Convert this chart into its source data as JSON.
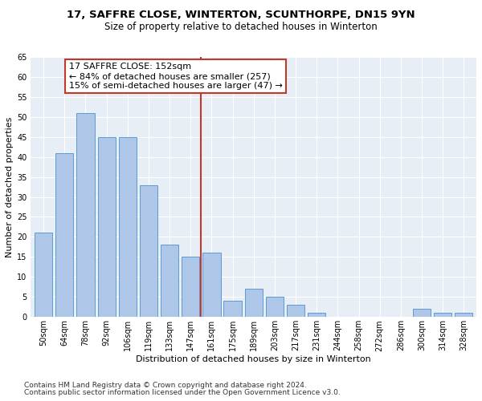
{
  "title": "17, SAFFRE CLOSE, WINTERTON, SCUNTHORPE, DN15 9YN",
  "subtitle": "Size of property relative to detached houses in Winterton",
  "xlabel": "Distribution of detached houses by size in Winterton",
  "ylabel": "Number of detached properties",
  "categories": [
    "50sqm",
    "64sqm",
    "78sqm",
    "92sqm",
    "106sqm",
    "119sqm",
    "133sqm",
    "147sqm",
    "161sqm",
    "175sqm",
    "189sqm",
    "203sqm",
    "217sqm",
    "231sqm",
    "244sqm",
    "258sqm",
    "272sqm",
    "286sqm",
    "300sqm",
    "314sqm",
    "328sqm"
  ],
  "values": [
    21,
    41,
    51,
    45,
    45,
    33,
    18,
    15,
    16,
    4,
    7,
    5,
    3,
    1,
    0,
    0,
    0,
    0,
    2,
    1,
    1
  ],
  "bar_color": "#aec6e8",
  "bar_edge_color": "#5b9bd5",
  "vline_x": 7.5,
  "vline_color": "#c0392b",
  "annotation_line1": "17 SAFFRE CLOSE: 152sqm",
  "annotation_line2": "← 84% of detached houses are smaller (257)",
  "annotation_line3": "15% of semi-detached houses are larger (47) →",
  "annotation_box_color": "#ffffff",
  "annotation_box_edge": "#c0392b",
  "ylim": [
    0,
    65
  ],
  "yticks": [
    0,
    5,
    10,
    15,
    20,
    25,
    30,
    35,
    40,
    45,
    50,
    55,
    60,
    65
  ],
  "background_color": "#e8eef5",
  "footer1": "Contains HM Land Registry data © Crown copyright and database right 2024.",
  "footer2": "Contains public sector information licensed under the Open Government Licence v3.0.",
  "title_fontsize": 9.5,
  "subtitle_fontsize": 8.5,
  "axis_label_fontsize": 8,
  "tick_fontsize": 7,
  "footer_fontsize": 6.5,
  "annotation_fontsize": 8
}
